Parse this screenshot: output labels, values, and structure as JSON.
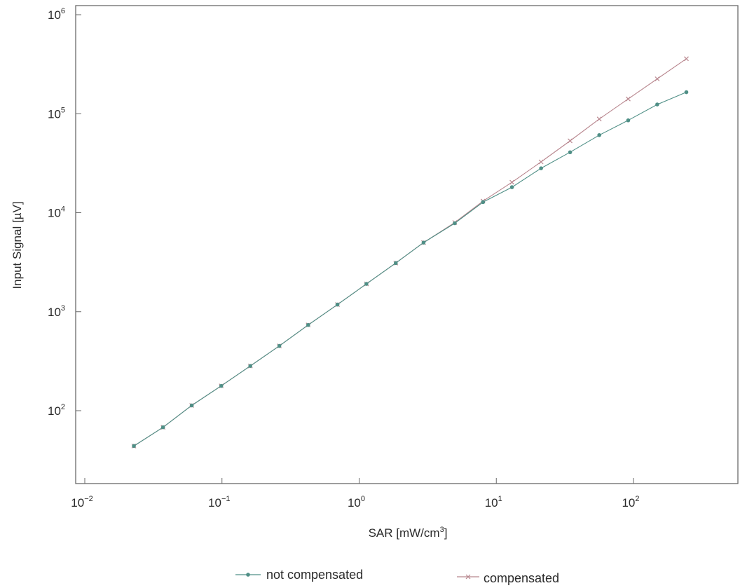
{
  "chart_data": {
    "type": "line",
    "xlabel": "SAR [mW/cm3]",
    "ylabel": "Input Signal [µV]",
    "x_scale": "log",
    "y_scale": "log",
    "xlim": [
      0.01,
      500
    ],
    "ylim": [
      20,
      1000000
    ],
    "x_ticks": [
      {
        "base": "10",
        "exp": "−2",
        "value": 0.01
      },
      {
        "base": "10",
        "exp": "−1",
        "value": 0.1
      },
      {
        "base": "10",
        "exp": "0",
        "value": 1
      },
      {
        "base": "10",
        "exp": "1",
        "value": 10
      },
      {
        "base": "10",
        "exp": "2",
        "value": 100
      }
    ],
    "y_ticks": [
      {
        "base": "10",
        "exp": "2",
        "value": 100
      },
      {
        "base": "10",
        "exp": "3",
        "value": 1000
      },
      {
        "base": "10",
        "exp": "4",
        "value": 10000
      },
      {
        "base": "10",
        "exp": "5",
        "value": 100000
      },
      {
        "base": "10",
        "exp": "6",
        "value": 1000000
      }
    ],
    "grid": false,
    "legend_position": "bottom",
    "series": [
      {
        "name": "not compensated",
        "color": "#4f8f86",
        "marker": "dot",
        "x": [
          0.0228,
          0.0372,
          0.0602,
          0.0988,
          0.161,
          0.262,
          0.425,
          0.695,
          1.13,
          1.85,
          2.95,
          4.98,
          8.0,
          13.0,
          21.2,
          34.5,
          56.3,
          91.5,
          149,
          243
        ],
        "y": [
          44,
          68,
          113,
          178,
          283,
          451,
          734,
          1180,
          1910,
          3100,
          4990,
          7830,
          12800,
          18100,
          28100,
          40800,
          60800,
          85700,
          124000,
          165000
        ]
      },
      {
        "name": "compensated",
        "color": "#b8868e",
        "marker": "cross",
        "x": [
          0.0228,
          0.0372,
          0.0602,
          0.0988,
          0.161,
          0.262,
          0.425,
          0.695,
          1.13,
          1.85,
          2.95,
          4.98,
          8.0,
          13.0,
          21.2,
          34.5,
          56.3,
          91.5,
          149,
          243
        ],
        "y": [
          44,
          68,
          113,
          178,
          283,
          451,
          734,
          1180,
          1910,
          3100,
          4990,
          7960,
          13100,
          20300,
          32600,
          53200,
          88400,
          141000,
          225000,
          359000
        ]
      }
    ]
  }
}
